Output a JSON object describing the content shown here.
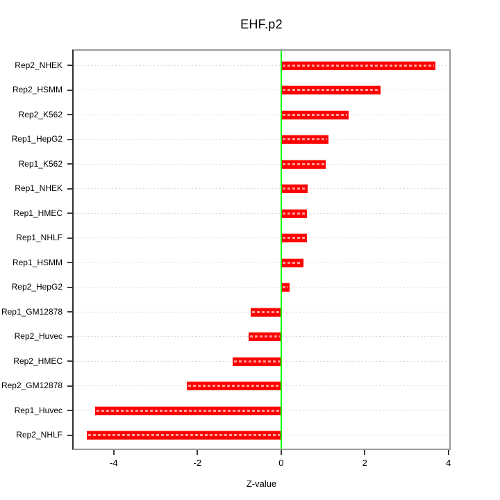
{
  "chart_data": {
    "type": "bar",
    "orientation": "horizontal",
    "title": "EHF.p2",
    "xlabel": "Z-value",
    "ylabel": "",
    "categories": [
      "Rep2_NHEK",
      "Rep2_HSMM",
      "Rep2_K562",
      "Rep1_HepG2",
      "Rep1_K562",
      "Rep1_NHEK",
      "Rep1_HMEC",
      "Rep1_NHLF",
      "Rep1_HSMM",
      "Rep2_HepG2",
      "Rep1_GM12878",
      "Rep2_Huvec",
      "Rep2_HMEC",
      "Rep2_GM12878",
      "Rep1_Huvec",
      "Rep2_NHLF"
    ],
    "values": [
      3.68,
      2.37,
      1.61,
      1.13,
      1.06,
      0.64,
      0.62,
      0.61,
      0.53,
      0.2,
      -0.72,
      -0.77,
      -1.16,
      -2.26,
      -4.44,
      -4.64
    ],
    "xticks": [
      -4,
      -2,
      0,
      2,
      4
    ],
    "xtick_labels": [
      "-4",
      "-2",
      "0",
      "2",
      "4"
    ],
    "xlim": [
      -4.96,
      4.02
    ],
    "grid": true,
    "grid_style": "dashed",
    "legend": false,
    "zero_line_value": 0,
    "colors": {
      "bar": "#ff0000",
      "bar_dash_overlay": "#ffffff",
      "zero_line": "#00ff00",
      "grid_line": "#d9d9d9",
      "box_border": "#9b9b9b",
      "tick": "#3c3c3c",
      "text": "#000000",
      "background": "#ffffff"
    }
  }
}
